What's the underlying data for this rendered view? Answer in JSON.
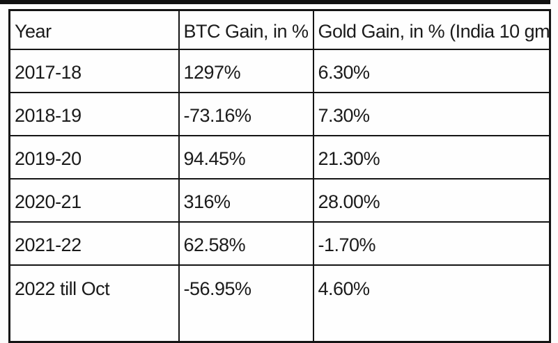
{
  "page": {
    "background_color": "#fcfcfc",
    "top_bar_color": "#101010",
    "table_border_color": "#141414",
    "text_color": "#1b1b1b"
  },
  "chart_data": {
    "type": "table",
    "columns": [
      "Year",
      "BTC Gain, in %",
      "Gold Gain, in % (India 10 gm"
    ],
    "rows": [
      [
        "2017-18",
        "1297%",
        "6.30%"
      ],
      [
        "2018-19",
        "-73.16%",
        "7.30%"
      ],
      [
        "2019-20",
        "94.45%",
        "21.30%"
      ],
      [
        "2020-21",
        "316%",
        "28.00%"
      ],
      [
        "2021-22",
        "62.58%",
        "-1.70%"
      ],
      [
        "2022 till Oct",
        "-56.95%",
        "4.60%"
      ]
    ]
  }
}
